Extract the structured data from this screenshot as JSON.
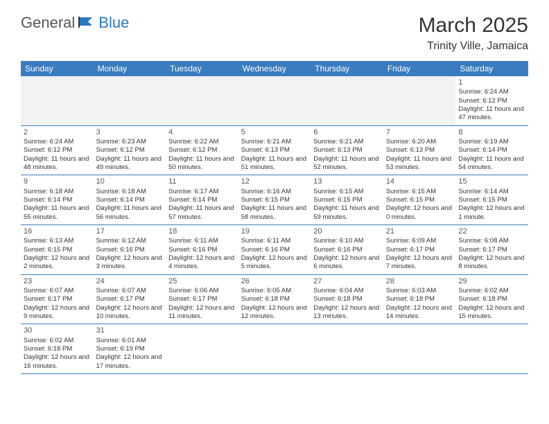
{
  "logo": {
    "part1": "General",
    "part2": "Blue"
  },
  "title": "March 2025",
  "location": "Trinity Ville, Jamaica",
  "colors": {
    "header_bg": "#3a7cbf",
    "header_text": "#ffffff",
    "border": "#3a7cbf",
    "logo_blue": "#2b78c2",
    "text": "#333333",
    "empty_bg": "#f2f2f2"
  },
  "day_headers": [
    "Sunday",
    "Monday",
    "Tuesday",
    "Wednesday",
    "Thursday",
    "Friday",
    "Saturday"
  ],
  "weeks": [
    [
      null,
      null,
      null,
      null,
      null,
      null,
      {
        "n": "1",
        "sr": "Sunrise: 6:24 AM",
        "ss": "Sunset: 6:12 PM",
        "dl": "Daylight: 11 hours and 47 minutes."
      }
    ],
    [
      {
        "n": "2",
        "sr": "Sunrise: 6:24 AM",
        "ss": "Sunset: 6:12 PM",
        "dl": "Daylight: 11 hours and 48 minutes."
      },
      {
        "n": "3",
        "sr": "Sunrise: 6:23 AM",
        "ss": "Sunset: 6:12 PM",
        "dl": "Daylight: 11 hours and 49 minutes."
      },
      {
        "n": "4",
        "sr": "Sunrise: 6:22 AM",
        "ss": "Sunset: 6:12 PM",
        "dl": "Daylight: 11 hours and 50 minutes."
      },
      {
        "n": "5",
        "sr": "Sunrise: 6:21 AM",
        "ss": "Sunset: 6:13 PM",
        "dl": "Daylight: 11 hours and 51 minutes."
      },
      {
        "n": "6",
        "sr": "Sunrise: 6:21 AM",
        "ss": "Sunset: 6:13 PM",
        "dl": "Daylight: 11 hours and 52 minutes."
      },
      {
        "n": "7",
        "sr": "Sunrise: 6:20 AM",
        "ss": "Sunset: 6:13 PM",
        "dl": "Daylight: 11 hours and 53 minutes."
      },
      {
        "n": "8",
        "sr": "Sunrise: 6:19 AM",
        "ss": "Sunset: 6:14 PM",
        "dl": "Daylight: 11 hours and 54 minutes."
      }
    ],
    [
      {
        "n": "9",
        "sr": "Sunrise: 6:18 AM",
        "ss": "Sunset: 6:14 PM",
        "dl": "Daylight: 11 hours and 55 minutes."
      },
      {
        "n": "10",
        "sr": "Sunrise: 6:18 AM",
        "ss": "Sunset: 6:14 PM",
        "dl": "Daylight: 11 hours and 56 minutes."
      },
      {
        "n": "11",
        "sr": "Sunrise: 6:17 AM",
        "ss": "Sunset: 6:14 PM",
        "dl": "Daylight: 11 hours and 57 minutes."
      },
      {
        "n": "12",
        "sr": "Sunrise: 6:16 AM",
        "ss": "Sunset: 6:15 PM",
        "dl": "Daylight: 11 hours and 58 minutes."
      },
      {
        "n": "13",
        "sr": "Sunrise: 6:15 AM",
        "ss": "Sunset: 6:15 PM",
        "dl": "Daylight: 11 hours and 59 minutes."
      },
      {
        "n": "14",
        "sr": "Sunrise: 6:15 AM",
        "ss": "Sunset: 6:15 PM",
        "dl": "Daylight: 12 hours and 0 minutes."
      },
      {
        "n": "15",
        "sr": "Sunrise: 6:14 AM",
        "ss": "Sunset: 6:15 PM",
        "dl": "Daylight: 12 hours and 1 minute."
      }
    ],
    [
      {
        "n": "16",
        "sr": "Sunrise: 6:13 AM",
        "ss": "Sunset: 6:15 PM",
        "dl": "Daylight: 12 hours and 2 minutes."
      },
      {
        "n": "17",
        "sr": "Sunrise: 6:12 AM",
        "ss": "Sunset: 6:16 PM",
        "dl": "Daylight: 12 hours and 3 minutes."
      },
      {
        "n": "18",
        "sr": "Sunrise: 6:11 AM",
        "ss": "Sunset: 6:16 PM",
        "dl": "Daylight: 12 hours and 4 minutes."
      },
      {
        "n": "19",
        "sr": "Sunrise: 6:11 AM",
        "ss": "Sunset: 6:16 PM",
        "dl": "Daylight: 12 hours and 5 minutes."
      },
      {
        "n": "20",
        "sr": "Sunrise: 6:10 AM",
        "ss": "Sunset: 6:16 PM",
        "dl": "Daylight: 12 hours and 6 minutes."
      },
      {
        "n": "21",
        "sr": "Sunrise: 6:09 AM",
        "ss": "Sunset: 6:17 PM",
        "dl": "Daylight: 12 hours and 7 minutes."
      },
      {
        "n": "22",
        "sr": "Sunrise: 6:08 AM",
        "ss": "Sunset: 6:17 PM",
        "dl": "Daylight: 12 hours and 8 minutes."
      }
    ],
    [
      {
        "n": "23",
        "sr": "Sunrise: 6:07 AM",
        "ss": "Sunset: 6:17 PM",
        "dl": "Daylight: 12 hours and 9 minutes."
      },
      {
        "n": "24",
        "sr": "Sunrise: 6:07 AM",
        "ss": "Sunset: 6:17 PM",
        "dl": "Daylight: 12 hours and 10 minutes."
      },
      {
        "n": "25",
        "sr": "Sunrise: 6:06 AM",
        "ss": "Sunset: 6:17 PM",
        "dl": "Daylight: 12 hours and 11 minutes."
      },
      {
        "n": "26",
        "sr": "Sunrise: 6:05 AM",
        "ss": "Sunset: 6:18 PM",
        "dl": "Daylight: 12 hours and 12 minutes."
      },
      {
        "n": "27",
        "sr": "Sunrise: 6:04 AM",
        "ss": "Sunset: 6:18 PM",
        "dl": "Daylight: 12 hours and 13 minutes."
      },
      {
        "n": "28",
        "sr": "Sunrise: 6:03 AM",
        "ss": "Sunset: 6:18 PM",
        "dl": "Daylight: 12 hours and 14 minutes."
      },
      {
        "n": "29",
        "sr": "Sunrise: 6:02 AM",
        "ss": "Sunset: 6:18 PM",
        "dl": "Daylight: 12 hours and 15 minutes."
      }
    ],
    [
      {
        "n": "30",
        "sr": "Sunrise: 6:02 AM",
        "ss": "Sunset: 6:18 PM",
        "dl": "Daylight: 12 hours and 16 minutes."
      },
      {
        "n": "31",
        "sr": "Sunrise: 6:01 AM",
        "ss": "Sunset: 6:19 PM",
        "dl": "Daylight: 12 hours and 17 minutes."
      },
      null,
      null,
      null,
      null,
      null
    ]
  ]
}
